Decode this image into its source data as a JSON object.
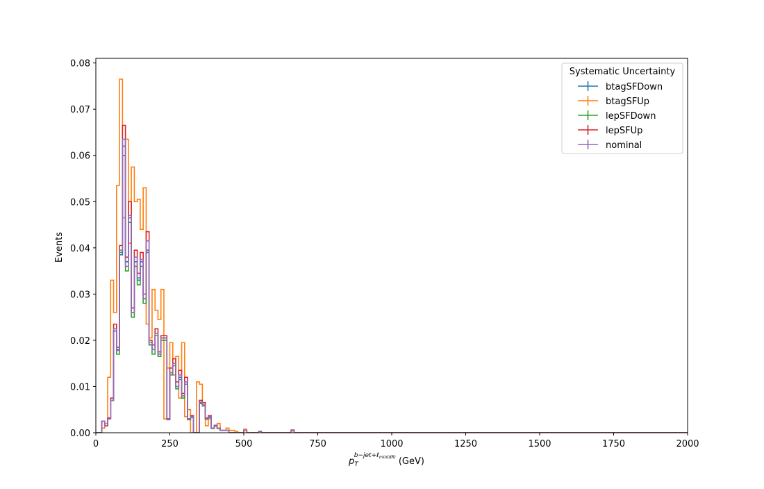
{
  "chart_data": {
    "type": "line",
    "title": "",
    "xlabel_main": "p",
    "xlabel_sub": "T",
    "xlabel_sup": "b−jet+ℓ",
    "xlabel_sup_sub": "min(dR)",
    "xlabel_unit": "(GeV)",
    "ylabel": "Events",
    "xlim": [
      0,
      2000
    ],
    "ylim": [
      0,
      0.081
    ],
    "xticks": [
      0,
      250,
      500,
      750,
      1000,
      1250,
      1500,
      1750,
      2000
    ],
    "xtick_labels": [
      "0",
      "250",
      "500",
      "750",
      "1000",
      "1250",
      "1500",
      "1750",
      "2000"
    ],
    "yticks": [
      0.0,
      0.01,
      0.02,
      0.03,
      0.04,
      0.05,
      0.06,
      0.07,
      0.08
    ],
    "ytick_labels": [
      "0.00",
      "0.01",
      "0.02",
      "0.03",
      "0.04",
      "0.05",
      "0.06",
      "0.07",
      "0.08"
    ],
    "legend": {
      "title": "Systematic Uncertainty",
      "placement": "top-right",
      "entries": [
        "btagSFDown",
        "btagSFUp",
        "lepSFDown",
        "lepSFUp",
        "nominal"
      ]
    },
    "bin_width": 10,
    "bin_start": 0,
    "grid": false,
    "series": [
      {
        "name": "btagSFDown",
        "color": "#1f77b4",
        "values": [
          0,
          0,
          0.0025,
          0.0015,
          0.003,
          0.007,
          0.022,
          0.018,
          0.0385,
          0.062,
          0.037,
          0.0465,
          0.026,
          0.037,
          0.033,
          0.037,
          0.029,
          0.0395,
          0.019,
          0.018,
          0.021,
          0.017,
          0.0205,
          0.0205,
          0.003,
          0.013,
          0.015,
          0.01,
          0.012,
          0.008,
          0.011,
          0.003,
          0.0035,
          0,
          0,
          0.0065,
          0.006,
          0.003,
          0.0035,
          0.001,
          0.0015,
          0.001,
          0.0005,
          0.0005,
          0.0005,
          0,
          0,
          0,
          0,
          0,
          0.0005,
          0,
          0,
          0,
          0,
          0.0003,
          0,
          0,
          0,
          0,
          0,
          0,
          0,
          0,
          0,
          0,
          0.0005,
          0,
          0,
          0,
          0
        ]
      },
      {
        "name": "btagSFUp",
        "color": "#ff7f0e",
        "values": [
          0,
          0,
          0.001,
          0.002,
          0.012,
          0.033,
          0.026,
          0.0535,
          0.0765,
          0.0465,
          0.0635,
          0.041,
          0.0575,
          0.05,
          0.0505,
          0.044,
          0.053,
          0.0235,
          0.0205,
          0.031,
          0.0265,
          0.0245,
          0.031,
          0.003,
          0.014,
          0.0195,
          0.0125,
          0.0165,
          0.0075,
          0.0195,
          0.0035,
          0.005,
          0,
          0,
          0.011,
          0.0105,
          0.0065,
          0.0015,
          0.003,
          0.001,
          0.0015,
          0.002,
          0.0005,
          0.0005,
          0.001,
          0.0005,
          0.0005,
          0.0003,
          0,
          0,
          0.0008,
          0,
          0,
          0,
          0,
          0.0003,
          0,
          0,
          0,
          0,
          0,
          0,
          0,
          0,
          0,
          0,
          0.0004,
          0,
          0,
          0,
          0
        ]
      },
      {
        "name": "lepSFDown",
        "color": "#2ca02c",
        "values": [
          0,
          0,
          0.0025,
          0.0015,
          0.003,
          0.007,
          0.022,
          0.017,
          0.039,
          0.06,
          0.035,
          0.0455,
          0.025,
          0.036,
          0.032,
          0.036,
          0.028,
          0.039,
          0.019,
          0.017,
          0.021,
          0.0165,
          0.02,
          0.02,
          0.0028,
          0.0125,
          0.0145,
          0.0095,
          0.0115,
          0.0075,
          0.0105,
          0.0028,
          0.0033,
          0,
          0,
          0.0063,
          0.0058,
          0.0029,
          0.0033,
          0.0009,
          0.0014,
          0.0009,
          0.0005,
          0.0005,
          0.0005,
          0,
          0,
          0,
          0,
          0,
          0.0005,
          0,
          0,
          0,
          0,
          0.0003,
          0,
          0,
          0,
          0,
          0,
          0,
          0,
          0,
          0,
          0,
          0.0005,
          0,
          0,
          0,
          0
        ]
      },
      {
        "name": "lepSFUp",
        "color": "#d62728",
        "values": [
          0,
          0,
          0.0025,
          0.0015,
          0.0032,
          0.0075,
          0.0235,
          0.0185,
          0.0405,
          0.0665,
          0.038,
          0.05,
          0.027,
          0.0395,
          0.0345,
          0.039,
          0.03,
          0.0435,
          0.02,
          0.019,
          0.0225,
          0.0175,
          0.021,
          0.021,
          0.003,
          0.014,
          0.016,
          0.011,
          0.0135,
          0.0085,
          0.012,
          0.003,
          0.0037,
          0,
          0,
          0.007,
          0.0065,
          0.0032,
          0.0037,
          0.001,
          0.0016,
          0.001,
          0.0005,
          0.0005,
          0.0005,
          0,
          0,
          0,
          0,
          0,
          0.0005,
          0,
          0,
          0,
          0,
          0.0003,
          0,
          0,
          0,
          0,
          0,
          0,
          0,
          0,
          0,
          0,
          0.0006,
          0,
          0,
          0,
          0
        ]
      },
      {
        "name": "nominal",
        "color": "#9467bd",
        "values": [
          0,
          0,
          0.0025,
          0.0015,
          0.003,
          0.007,
          0.0225,
          0.0178,
          0.0395,
          0.0635,
          0.036,
          0.047,
          0.026,
          0.038,
          0.0335,
          0.0375,
          0.029,
          0.0415,
          0.0195,
          0.018,
          0.0215,
          0.017,
          0.0205,
          0.0205,
          0.0029,
          0.013,
          0.015,
          0.01,
          0.0125,
          0.008,
          0.011,
          0.003,
          0.0035,
          0,
          0,
          0.0066,
          0.006,
          0.003,
          0.0035,
          0.001,
          0.0015,
          0.001,
          0.0005,
          0.0005,
          0.0005,
          0,
          0,
          0,
          0,
          0,
          0.0005,
          0,
          0,
          0,
          0,
          0.0003,
          0,
          0,
          0,
          0,
          0,
          0,
          0,
          0,
          0,
          0,
          0.0005,
          0,
          0,
          0,
          0
        ]
      }
    ]
  }
}
